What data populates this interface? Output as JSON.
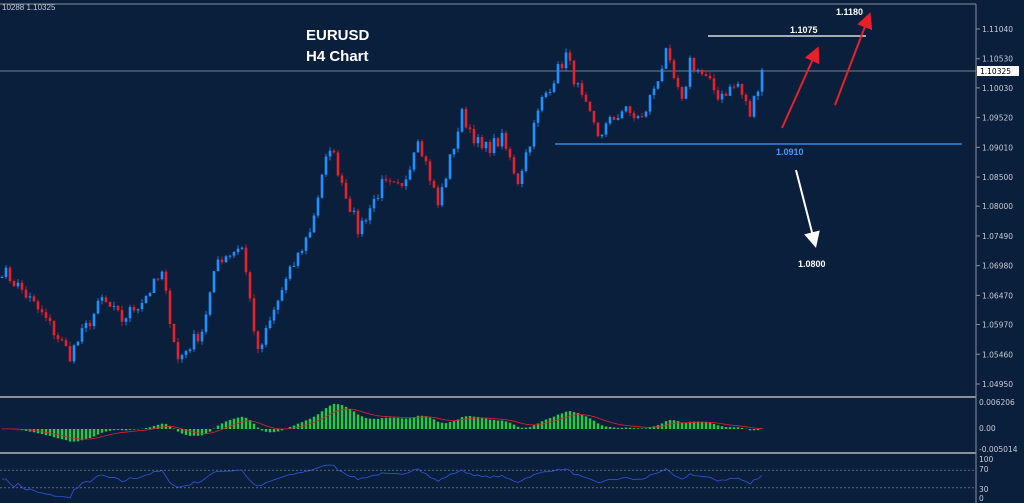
{
  "header": {
    "ohlc_text": "10288 1.10325",
    "symbol": "EURUSD",
    "timeframe": "H4 Chart"
  },
  "chart_data": {
    "type": "candlestick",
    "title": "EURUSD H4 Chart",
    "ylim": [
      1.047,
      1.1152
    ],
    "y_ticks": [
      "1.11040",
      "1.10530",
      "1.10030",
      "1.09520",
      "1.09010",
      "1.08500",
      "1.08000",
      "1.07490",
      "1.06980",
      "1.06470",
      "1.05970",
      "1.05460",
      "1.04950"
    ],
    "current_price": "1.10325",
    "close_path": [
      [
        0,
        1.0691
      ],
      [
        5,
        1.0656
      ],
      [
        11,
        1.0605
      ],
      [
        17,
        1.0545
      ],
      [
        25,
        1.0639
      ],
      [
        30,
        1.0605
      ],
      [
        35,
        1.0639
      ],
      [
        40,
        1.0682
      ],
      [
        44,
        1.0536
      ],
      [
        50,
        1.0588
      ],
      [
        54,
        1.0708
      ],
      [
        60,
        1.0733
      ],
      [
        64,
        1.0545
      ],
      [
        70,
        1.0656
      ],
      [
        77,
        1.0759
      ],
      [
        82,
        1.0905
      ],
      [
        89,
        1.0759
      ],
      [
        95,
        1.0836
      ],
      [
        100,
        1.0828
      ],
      [
        104,
        1.0922
      ],
      [
        109,
        1.0802
      ],
      [
        115,
        1.0957
      ],
      [
        120,
        1.0896
      ],
      [
        125,
        1.0914
      ],
      [
        129,
        1.0845
      ],
      [
        135,
        1.0982
      ],
      [
        141,
        1.1059
      ],
      [
        145,
        1.0982
      ],
      [
        149,
        1.0922
      ],
      [
        155,
        1.0965
      ],
      [
        160,
        1.0948
      ],
      [
        166,
        1.1059
      ],
      [
        170,
        1.0974
      ],
      [
        172,
        1.1051
      ],
      [
        179,
        1.0991
      ],
      [
        184,
        1.1008
      ],
      [
        187,
        1.0957
      ],
      [
        190,
        1.1034
      ]
    ],
    "colors": {
      "bull": "#1e90ff",
      "bear": "#e8202a",
      "bg": "#0a1f3c"
    },
    "annotations": {
      "resistance": "1.1075",
      "support": "1.0910",
      "target_up": "1.1180",
      "target_down": "1.0800"
    },
    "macd": {
      "ticks": [
        "0.006206",
        "0.00",
        "-0.005014"
      ],
      "hist_color": "#22cc44",
      "signal_color": "#e8202a"
    },
    "rsi": {
      "ticks": [
        "100",
        "70",
        "30",
        "0"
      ],
      "line_color": "#3355dd"
    }
  }
}
